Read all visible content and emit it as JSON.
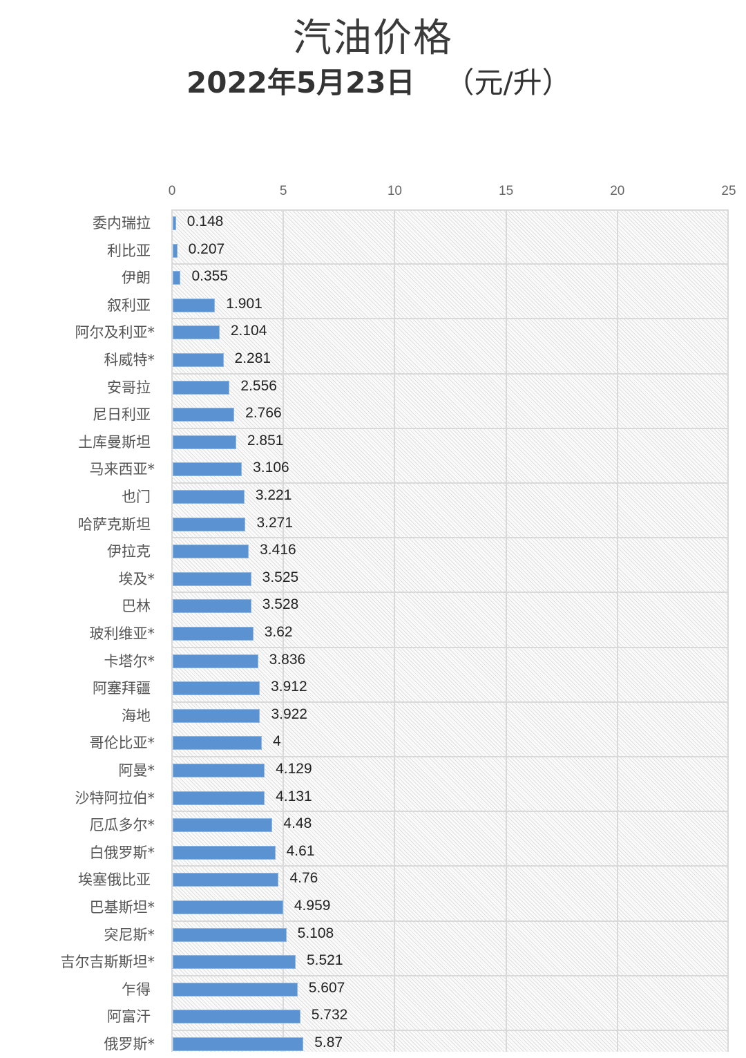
{
  "title": "汽油价格",
  "subtitle": {
    "date": "2022年5月23日",
    "unit": "（元/升）"
  },
  "colors": {
    "bar": "#5b93d2",
    "grid": "#d9d9d9",
    "text": "#333333"
  },
  "chart_data": {
    "type": "bar",
    "orientation": "horizontal",
    "title": "汽油价格",
    "subtitle": "2022年5月23日 （元/升）",
    "xlabel": "",
    "ylabel": "",
    "xlim": [
      0,
      25
    ],
    "xticks": [
      "0",
      "5",
      "10",
      "15",
      "20",
      "25"
    ],
    "grid": true,
    "legend": null,
    "categories": [
      "委内瑞拉",
      "利比亚",
      "伊朗",
      "叙利亚",
      "阿尔及利亚*",
      "科威特*",
      "安哥拉",
      "尼日利亚",
      "土库曼斯坦",
      "马来西亚*",
      "也门",
      "哈萨克斯坦",
      "伊拉克",
      "埃及*",
      "巴林",
      "玻利维亚*",
      "卡塔尔*",
      "阿塞拜疆",
      "海地",
      "哥伦比亚*",
      "阿曼*",
      "沙特阿拉伯*",
      "厄瓜多尔*",
      "白俄罗斯*",
      "埃塞俄比亚",
      "巴基斯坦*",
      "突尼斯*",
      "吉尔吉斯斯坦*",
      "乍得",
      "阿富汗",
      "俄罗斯*"
    ],
    "values": [
      0.148,
      0.207,
      0.355,
      1.901,
      2.104,
      2.281,
      2.556,
      2.766,
      2.851,
      3.106,
      3.221,
      3.271,
      3.416,
      3.525,
      3.528,
      3.62,
      3.836,
      3.912,
      3.922,
      4,
      4.129,
      4.131,
      4.48,
      4.61,
      4.76,
      4.959,
      5.108,
      5.521,
      5.607,
      5.732,
      5.87
    ],
    "value_labels": [
      "0.148",
      "0.207",
      "0.355",
      "1.901",
      "2.104",
      "2.281",
      "2.556",
      "2.766",
      "2.851",
      "3.106",
      "3.221",
      "3.271",
      "3.416",
      "3.525",
      "3.528",
      "3.62",
      "3.836",
      "3.912",
      "3.922",
      "4",
      "4.129",
      "4.131",
      "4.48",
      "4.61",
      "4.76",
      "4.959",
      "5.108",
      "5.521",
      "5.607",
      "5.732",
      "5.87"
    ]
  }
}
